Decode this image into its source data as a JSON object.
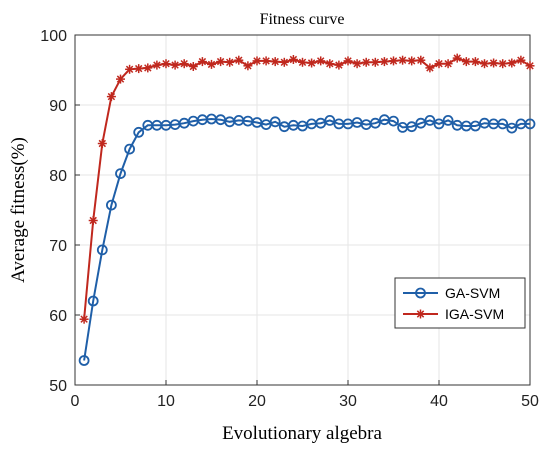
{
  "chart_data": {
    "type": "line",
    "title": "Fitness curve",
    "xlabel": "Evolutionary algebra",
    "ylabel": "Average fitness(%)",
    "xlim": [
      0,
      50
    ],
    "ylim": [
      50,
      100
    ],
    "xticks": [
      "0",
      "10",
      "20",
      "30",
      "40",
      "50"
    ],
    "yticks": [
      "50",
      "60",
      "70",
      "80",
      "90",
      "100"
    ],
    "grid": true,
    "legend_position": "bottom-right",
    "x": [
      1,
      2,
      3,
      4,
      5,
      6,
      7,
      8,
      9,
      10,
      11,
      12,
      13,
      14,
      15,
      16,
      17,
      18,
      19,
      20,
      21,
      22,
      23,
      24,
      25,
      26,
      27,
      28,
      29,
      30,
      31,
      32,
      33,
      34,
      35,
      36,
      37,
      38,
      39,
      40,
      41,
      42,
      43,
      44,
      45,
      46,
      47,
      48,
      49,
      50
    ],
    "series": [
      {
        "name": "GA-SVM",
        "color": "#1f5fa8",
        "marker": "circle",
        "values": [
          53.5,
          62,
          69.3,
          75.7,
          80.2,
          83.7,
          86.1,
          87.1,
          87.1,
          87.1,
          87.2,
          87.4,
          87.7,
          87.9,
          88,
          87.9,
          87.6,
          87.8,
          87.7,
          87.5,
          87.2,
          87.6,
          86.9,
          87.1,
          87.0,
          87.3,
          87.4,
          87.8,
          87.3,
          87.3,
          87.5,
          87.2,
          87.4,
          87.9,
          87.7,
          86.8,
          86.9,
          87.4,
          87.8,
          87.3,
          87.8,
          87.1,
          87.0,
          87.0,
          87.4,
          87.3,
          87.3,
          86.7,
          87.3,
          87.3
        ]
      },
      {
        "name": "IGA-SVM",
        "color": "#c0281e",
        "marker": "asterisk",
        "values": [
          59.4,
          73.5,
          84.5,
          91.2,
          93.7,
          95.1,
          95.2,
          95.3,
          95.7,
          95.9,
          95.7,
          95.9,
          95.5,
          96.2,
          95.8,
          96.2,
          96.1,
          96.4,
          95.6,
          96.3,
          96.3,
          96.2,
          96.1,
          96.5,
          96.1,
          96.0,
          96.3,
          95.9,
          95.7,
          96.3,
          95.9,
          96.1,
          96.1,
          96.2,
          96.3,
          96.4,
          96.3,
          96.4,
          95.3,
          95.9,
          95.9,
          96.7,
          96.2,
          96.2,
          95.9,
          96.0,
          95.9,
          96.0,
          96.4,
          95.6
        ]
      }
    ]
  }
}
